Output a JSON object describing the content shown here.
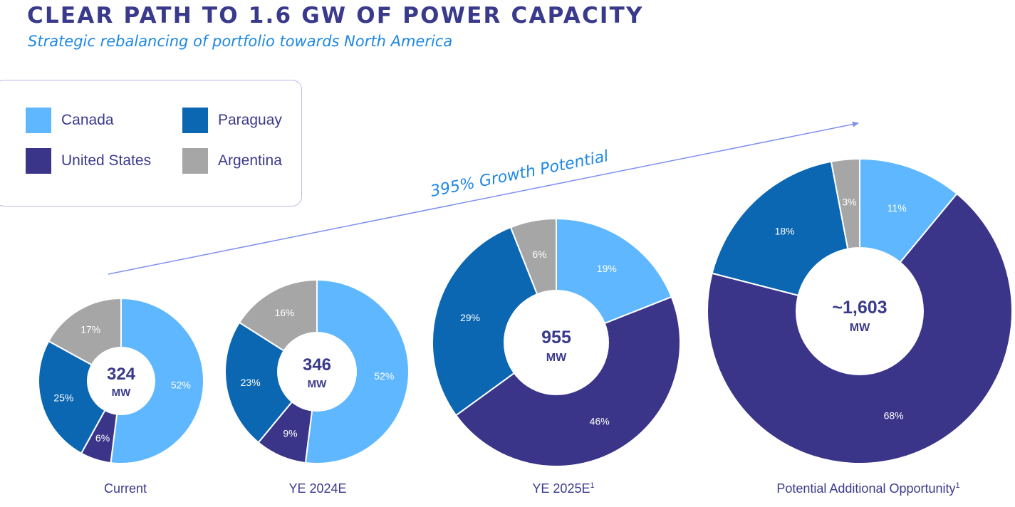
{
  "title": "CLEAR PATH TO 1.6 GW OF POWER CAPACITY",
  "subtitle": "Strategic rebalancing of portfolio towards North America",
  "legend": [
    {
      "label": "Canada",
      "color": "#5fb8ff"
    },
    {
      "label": "Paraguay",
      "color": "#0b67b2"
    },
    {
      "label": "United States",
      "color": "#3a3589"
    },
    {
      "label": "Argentina",
      "color": "#a6a6a6"
    }
  ],
  "growth_label": "395% Growth Potential",
  "chart_data": [
    {
      "type": "pie",
      "label": "Current",
      "footnote": "",
      "center_value": "324",
      "center_unit": "MW",
      "slices": [
        {
          "name": "Canada",
          "value": 52,
          "label": "52%"
        },
        {
          "name": "United States",
          "value": 6,
          "label": "6%"
        },
        {
          "name": "Paraguay",
          "value": 25,
          "label": "25%"
        },
        {
          "name": "Argentina",
          "value": 17,
          "label": "17%"
        }
      ]
    },
    {
      "type": "pie",
      "label": "YE 2024E",
      "footnote": "",
      "center_value": "346",
      "center_unit": "MW",
      "slices": [
        {
          "name": "Canada",
          "value": 52,
          "label": "52%"
        },
        {
          "name": "United States",
          "value": 9,
          "label": "9%"
        },
        {
          "name": "Paraguay",
          "value": 23,
          "label": "23%"
        },
        {
          "name": "Argentina",
          "value": 16,
          "label": "16%"
        }
      ]
    },
    {
      "type": "pie",
      "label": "YE 2025E",
      "footnote": "1",
      "center_value": "955",
      "center_unit": "MW",
      "slices": [
        {
          "name": "Canada",
          "value": 19,
          "label": "19%"
        },
        {
          "name": "United States",
          "value": 46,
          "label": "46%"
        },
        {
          "name": "Paraguay",
          "value": 29,
          "label": "29%"
        },
        {
          "name": "Argentina",
          "value": 6,
          "label": "6%"
        }
      ]
    },
    {
      "type": "pie",
      "label": "Potential Additional Opportunity",
      "footnote": "1",
      "center_value": "~1,603",
      "center_unit": "MW",
      "slices": [
        {
          "name": "Canada",
          "value": 11,
          "label": "11%"
        },
        {
          "name": "United States",
          "value": 68,
          "label": "68%"
        },
        {
          "name": "Paraguay",
          "value": 18,
          "label": "18%"
        },
        {
          "name": "Argentina",
          "value": 3,
          "label": "3%"
        }
      ]
    }
  ]
}
